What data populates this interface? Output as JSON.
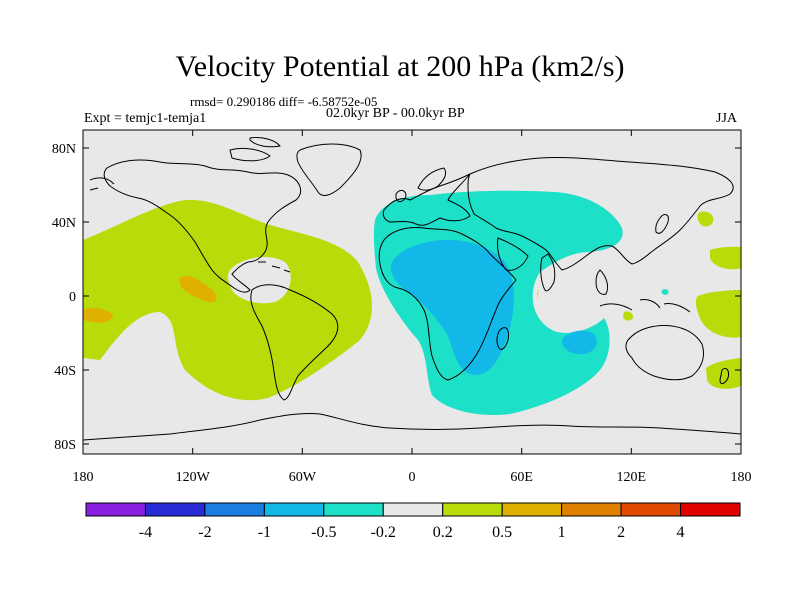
{
  "title": "Velocity Potential at 200 hPa (km2/s)",
  "stats": "rmsd= 0.290186 diff= -6.58752e-05",
  "expt": "Expt = temjc1-temja1",
  "period": "02.0kyr BP - 00.0kyr BP",
  "season": "JJA",
  "y_ticks": [
    "80N",
    "40N",
    "0",
    "40S",
    "80S"
  ],
  "x_ticks": [
    "180",
    "120W",
    "60W",
    "0",
    "60E",
    "120E",
    "180"
  ],
  "colorbar": {
    "colors": [
      "#8a1fe0",
      "#2a2ad6",
      "#1a7fe0",
      "#12b8e8",
      "#1de0c8",
      "#e8e8e8",
      "#b8dc0a",
      "#e0b000",
      "#e08000",
      "#e04a00",
      "#e00000"
    ],
    "labels": [
      "-4",
      "-2",
      "-1",
      "-0.5",
      "-0.2",
      "0.2",
      "0.5",
      "1",
      "2",
      "4"
    ]
  },
  "colors": {
    "background": "#e8e8e8",
    "positive_weak": "#b8dc0a",
    "positive_mid": "#e0b000",
    "negative_weak": "#1de0c8",
    "negative_mid": "#12b8e8"
  }
}
